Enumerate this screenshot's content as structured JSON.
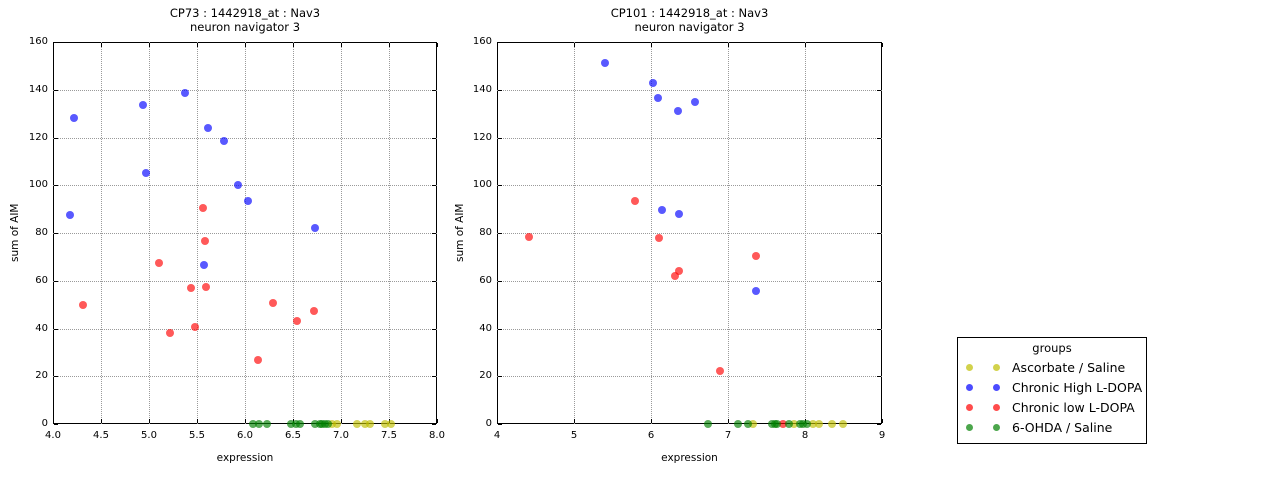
{
  "figure": {
    "background": "#ffffff"
  },
  "legend": {
    "title": "groups",
    "entries": [
      {
        "label": "Ascorbate / Saline",
        "color": "#bfbf00"
      },
      {
        "label": "Chronic High L-DOPA",
        "color": "#0000ff"
      },
      {
        "label": "Chronic low L-DOPA",
        "color": "#ff0000"
      },
      {
        "label": "6-OHDA / Saline",
        "color": "#008000"
      }
    ]
  },
  "chart_data": [
    {
      "type": "scatter",
      "title": "CP73 : 1442918_at : Nav3",
      "subtitle": "neuron navigator 3",
      "xlabel": "expression",
      "ylabel": "sum of AIM",
      "xlim": [
        4.0,
        8.0
      ],
      "ylim": [
        0,
        160
      ],
      "xticks": [
        4.0,
        4.5,
        5.0,
        5.5,
        6.0,
        6.5,
        7.0,
        7.5,
        8.0
      ],
      "xtick_labels": [
        "4.0",
        "4.5",
        "5.0",
        "5.5",
        "6.0",
        "6.5",
        "7.0",
        "7.5",
        "8.0"
      ],
      "yticks": [
        0,
        20,
        40,
        60,
        80,
        100,
        120,
        140,
        160
      ],
      "ytick_labels": [
        "0",
        "20",
        "40",
        "60",
        "80",
        "100",
        "120",
        "140",
        "160"
      ],
      "grid": true,
      "series": [
        {
          "name": "Ascorbate / Saline",
          "color": "#bfbf00",
          "points": [
            [
              6.91,
              0
            ],
            [
              6.96,
              0
            ],
            [
              7.17,
              0
            ],
            [
              7.25,
              0
            ],
            [
              7.3,
              0
            ],
            [
              7.46,
              0
            ],
            [
              7.52,
              0
            ]
          ]
        },
        {
          "name": "Chronic High L-DOPA",
          "color": "#0000ff",
          "points": [
            [
              4.18,
              87.5
            ],
            [
              4.22,
              128
            ],
            [
              4.94,
              133.5
            ],
            [
              4.97,
              105
            ],
            [
              5.38,
              138.5
            ],
            [
              5.57,
              66.5
            ],
            [
              5.61,
              124
            ],
            [
              5.78,
              118.5
            ],
            [
              5.93,
              100
            ],
            [
              6.03,
              93.5
            ],
            [
              6.73,
              82
            ]
          ]
        },
        {
          "name": "Chronic low L-DOPA",
          "color": "#ff0000",
          "points": [
            [
              4.31,
              50
            ],
            [
              5.1,
              67.5
            ],
            [
              5.22,
              38
            ],
            [
              5.44,
              57
            ],
            [
              5.48,
              40.5
            ],
            [
              5.56,
              90.5
            ],
            [
              5.58,
              76.5
            ],
            [
              5.59,
              57.5
            ],
            [
              6.14,
              27
            ],
            [
              6.29,
              50.5
            ],
            [
              6.54,
              43
            ],
            [
              6.72,
              47.5
            ]
          ]
        },
        {
          "name": "6-OHDA / Saline",
          "color": "#008000",
          "points": [
            [
              6.08,
              0
            ],
            [
              6.15,
              0
            ],
            [
              6.23,
              0
            ],
            [
              6.48,
              0
            ],
            [
              6.53,
              0
            ],
            [
              6.57,
              0
            ],
            [
              6.73,
              0
            ],
            [
              6.78,
              0
            ],
            [
              6.8,
              0
            ],
            [
              6.83,
              0
            ],
            [
              6.86,
              0
            ]
          ]
        }
      ]
    },
    {
      "type": "scatter",
      "title": "CP101 : 1442918_at : Nav3",
      "subtitle": "neuron navigator 3",
      "xlabel": "expression",
      "ylabel": "sum of AIM",
      "xlim": [
        4,
        9
      ],
      "ylim": [
        0,
        160
      ],
      "xticks": [
        4,
        5,
        6,
        7,
        8,
        9
      ],
      "xtick_labels": [
        "4",
        "5",
        "6",
        "7",
        "8",
        "9"
      ],
      "yticks": [
        0,
        20,
        40,
        60,
        80,
        100,
        120,
        140,
        160
      ],
      "ytick_labels": [
        "0",
        "20",
        "40",
        "60",
        "80",
        "100",
        "120",
        "140",
        "160"
      ],
      "grid": true,
      "series": [
        {
          "name": "Ascorbate / Saline",
          "color": "#bfbf00",
          "points": [
            [
              7.33,
              0
            ],
            [
              7.86,
              0
            ],
            [
              8.1,
              0
            ],
            [
              8.18,
              0
            ],
            [
              8.35,
              0
            ],
            [
              8.49,
              0
            ]
          ]
        },
        {
          "name": "Chronic High L-DOPA",
          "color": "#0000ff",
          "points": [
            [
              5.4,
              151
            ],
            [
              6.03,
              143
            ],
            [
              6.09,
              136.5
            ],
            [
              6.14,
              89.5
            ],
            [
              6.35,
              131
            ],
            [
              6.36,
              88
            ],
            [
              6.57,
              135
            ],
            [
              7.36,
              55.5
            ]
          ]
        },
        {
          "name": "Chronic low L-DOPA",
          "color": "#ff0000",
          "points": [
            [
              4.42,
              78.5
            ],
            [
              5.79,
              93.5
            ],
            [
              6.1,
              78
            ],
            [
              6.31,
              62
            ],
            [
              6.36,
              64
            ],
            [
              6.9,
              22
            ],
            [
              7.37,
              70.5
            ],
            [
              7.71,
              0
            ]
          ]
        },
        {
          "name": "6-OHDA / Saline",
          "color": "#008000",
          "points": [
            [
              6.74,
              0
            ],
            [
              7.13,
              0
            ],
            [
              7.26,
              0
            ],
            [
              7.57,
              0
            ],
            [
              7.61,
              0
            ],
            [
              7.64,
              0
            ],
            [
              7.79,
              0
            ],
            [
              7.94,
              0
            ],
            [
              7.97,
              0
            ],
            [
              8.02,
              0
            ]
          ]
        }
      ]
    }
  ]
}
